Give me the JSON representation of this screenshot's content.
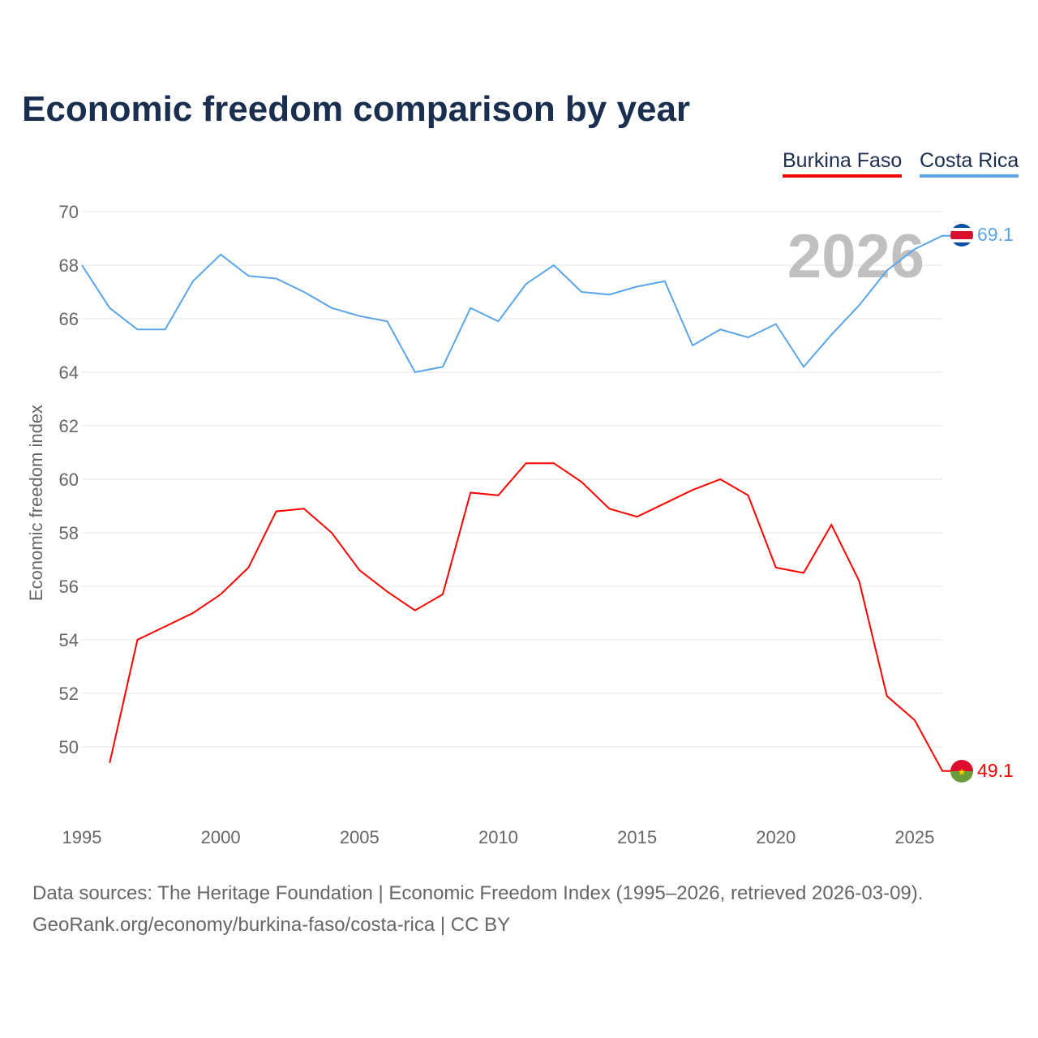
{
  "chart_data": {
    "type": "line",
    "title": "Economic freedom comparison by year",
    "xlabel": "",
    "ylabel": "Economic freedom index",
    "xlim": [
      1995,
      2026
    ],
    "ylim": [
      48,
      70
    ],
    "yticks": [
      50,
      52,
      54,
      56,
      58,
      60,
      62,
      64,
      66,
      68,
      70
    ],
    "xticks": [
      1995,
      2000,
      2005,
      2010,
      2015,
      2020,
      2025
    ],
    "grid": true,
    "legend_position": "top-right",
    "year_watermark": "2026",
    "series": [
      {
        "name": "Burkina Faso",
        "color": "#ff0000",
        "end_label": "49.1",
        "x": [
          1996,
          1997,
          1998,
          1999,
          2000,
          2001,
          2002,
          2003,
          2004,
          2005,
          2006,
          2007,
          2008,
          2009,
          2010,
          2011,
          2012,
          2013,
          2014,
          2015,
          2016,
          2017,
          2018,
          2019,
          2020,
          2021,
          2022,
          2023,
          2024,
          2025,
          2026
        ],
        "values": [
          49.4,
          54.0,
          54.5,
          55.0,
          55.7,
          56.7,
          58.8,
          58.9,
          58.0,
          56.6,
          55.8,
          55.1,
          55.7,
          59.5,
          59.4,
          60.6,
          60.6,
          59.9,
          58.9,
          58.6,
          59.1,
          59.6,
          60.0,
          59.4,
          56.7,
          56.5,
          58.3,
          56.2,
          51.9,
          51.0,
          49.1
        ]
      },
      {
        "name": "Costa Rica",
        "color": "#5aa5ea",
        "end_label": "69.1",
        "x": [
          1995,
          1996,
          1997,
          1998,
          1999,
          2000,
          2001,
          2002,
          2003,
          2004,
          2005,
          2006,
          2007,
          2008,
          2009,
          2010,
          2011,
          2012,
          2013,
          2014,
          2015,
          2016,
          2017,
          2018,
          2019,
          2020,
          2021,
          2022,
          2023,
          2024,
          2025,
          2026
        ],
        "values": [
          68.0,
          66.4,
          65.6,
          65.6,
          67.4,
          68.4,
          67.6,
          67.5,
          67.0,
          66.4,
          66.1,
          65.9,
          64.0,
          64.2,
          66.4,
          65.9,
          67.3,
          68.0,
          67.0,
          66.9,
          67.2,
          67.4,
          65.0,
          65.6,
          65.3,
          65.8,
          64.2,
          65.4,
          66.5,
          67.8,
          68.6,
          69.1
        ]
      }
    ]
  },
  "footer": {
    "line1": "Data sources: The Heritage Foundation | Economic Freedom Index (1995–2026, retrieved 2026-03-09).",
    "line2": "GeoRank.org/economy/burkina-faso/costa-rica | CC BY"
  }
}
